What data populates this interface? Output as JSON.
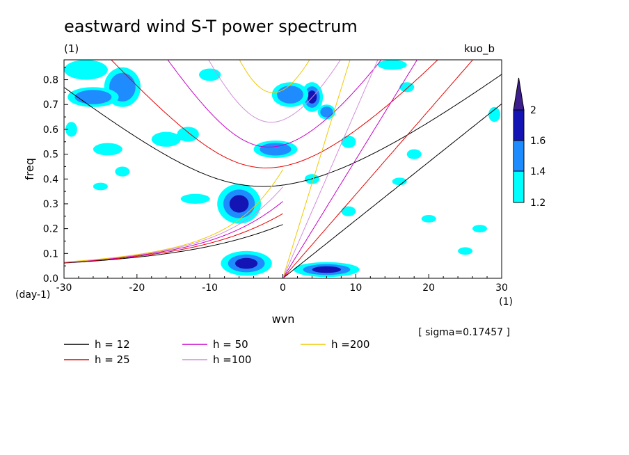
{
  "chart_data": {
    "type": "heatmap",
    "title": "eastward wind S-T power spectrum",
    "subtitle_left": "(1)",
    "subtitle_right": "kuo_b",
    "xlabel": "wvn",
    "ylabel": "freq",
    "x_unit": "(1)",
    "y_unit": "(day-1)",
    "sigma_text": "[ sigma=0.17457 ]",
    "xlim": [
      -30,
      30
    ],
    "ylim": [
      0,
      0.88
    ],
    "xticks": [
      "-30",
      "-20",
      "-10",
      "0",
      "10",
      "20",
      "30"
    ],
    "yticks": [
      "0.0",
      "0.1",
      "0.2",
      "0.3",
      "0.4",
      "0.5",
      "0.6",
      "0.7",
      "0.8"
    ],
    "colorbar": {
      "levels": [
        "1.2",
        "1.4",
        "1.6",
        "2"
      ],
      "colors": [
        "#00ffff",
        "#1e8cff",
        "#1414b4",
        "#3c1e8c"
      ]
    },
    "dispersion_curves": [
      {
        "name": "h = 12",
        "h": 12,
        "color": "#000000"
      },
      {
        "name": "h = 25",
        "h": 25,
        "color": "#e60000"
      },
      {
        "name": "h = 50",
        "h": 50,
        "color": "#c800c8"
      },
      {
        "name": "h =100",
        "h": 100,
        "color": "#d28cdc"
      },
      {
        "name": "h =200",
        "h": 200,
        "color": "#f0c800"
      }
    ],
    "blobs": [
      {
        "x": -6,
        "y": 0.3,
        "rx": 3.0,
        "ry": 0.08,
        "level": 2
      },
      {
        "x": -5,
        "y": 0.06,
        "rx": 3.5,
        "ry": 0.05,
        "level": 2
      },
      {
        "x": 6,
        "y": 0.035,
        "rx": 4.5,
        "ry": 0.03,
        "level": 2
      },
      {
        "x": 4,
        "y": 0.73,
        "rx": 1.5,
        "ry": 0.06,
        "level": 2
      },
      {
        "x": -1,
        "y": 0.52,
        "rx": 3.0,
        "ry": 0.035,
        "level": 1
      },
      {
        "x": -22,
        "y": 0.77,
        "rx": 2.5,
        "ry": 0.08,
        "level": 1
      },
      {
        "x": 1,
        "y": 0.74,
        "rx": 2.5,
        "ry": 0.05,
        "level": 1
      },
      {
        "x": -26,
        "y": 0.73,
        "rx": 3.5,
        "ry": 0.04,
        "level": 1
      },
      {
        "x": -27,
        "y": 0.84,
        "rx": 3.0,
        "ry": 0.04,
        "level": 0
      },
      {
        "x": -16,
        "y": 0.56,
        "rx": 2.0,
        "ry": 0.03,
        "level": 0
      },
      {
        "x": -13,
        "y": 0.58,
        "rx": 1.5,
        "ry": 0.03,
        "level": 0
      },
      {
        "x": -24,
        "y": 0.52,
        "rx": 2.0,
        "ry": 0.025,
        "level": 0
      },
      {
        "x": -12,
        "y": 0.32,
        "rx": 2.0,
        "ry": 0.02,
        "level": 0
      },
      {
        "x": -22,
        "y": 0.43,
        "rx": 1.0,
        "ry": 0.02,
        "level": 0
      },
      {
        "x": 6,
        "y": 0.67,
        "rx": 1.2,
        "ry": 0.03,
        "level": 1
      },
      {
        "x": 9,
        "y": 0.55,
        "rx": 1.0,
        "ry": 0.025,
        "level": 0
      },
      {
        "x": 4,
        "y": 0.4,
        "rx": 1.0,
        "ry": 0.02,
        "level": 0
      },
      {
        "x": 17,
        "y": 0.77,
        "rx": 1.0,
        "ry": 0.02,
        "level": 0
      },
      {
        "x": 15,
        "y": 0.86,
        "rx": 2.0,
        "ry": 0.02,
        "level": 0
      },
      {
        "x": 18,
        "y": 0.5,
        "rx": 1.0,
        "ry": 0.02,
        "level": 0
      },
      {
        "x": 29,
        "y": 0.66,
        "rx": 0.8,
        "ry": 0.03,
        "level": 0
      },
      {
        "x": -29,
        "y": 0.6,
        "rx": 0.8,
        "ry": 0.03,
        "level": 0
      },
      {
        "x": -10,
        "y": 0.82,
        "rx": 1.5,
        "ry": 0.025,
        "level": 0
      },
      {
        "x": 9,
        "y": 0.27,
        "rx": 1.0,
        "ry": 0.02,
        "level": 0
      },
      {
        "x": 20,
        "y": 0.24,
        "rx": 1.0,
        "ry": 0.015,
        "level": 0
      },
      {
        "x": 16,
        "y": 0.39,
        "rx": 1.0,
        "ry": 0.015,
        "level": 0
      },
      {
        "x": 25,
        "y": 0.11,
        "rx": 1.0,
        "ry": 0.015,
        "level": 0
      },
      {
        "x": -25,
        "y": 0.37,
        "rx": 1.0,
        "ry": 0.015,
        "level": 0
      },
      {
        "x": 27,
        "y": 0.2,
        "rx": 1.0,
        "ry": 0.015,
        "level": 0
      }
    ]
  }
}
